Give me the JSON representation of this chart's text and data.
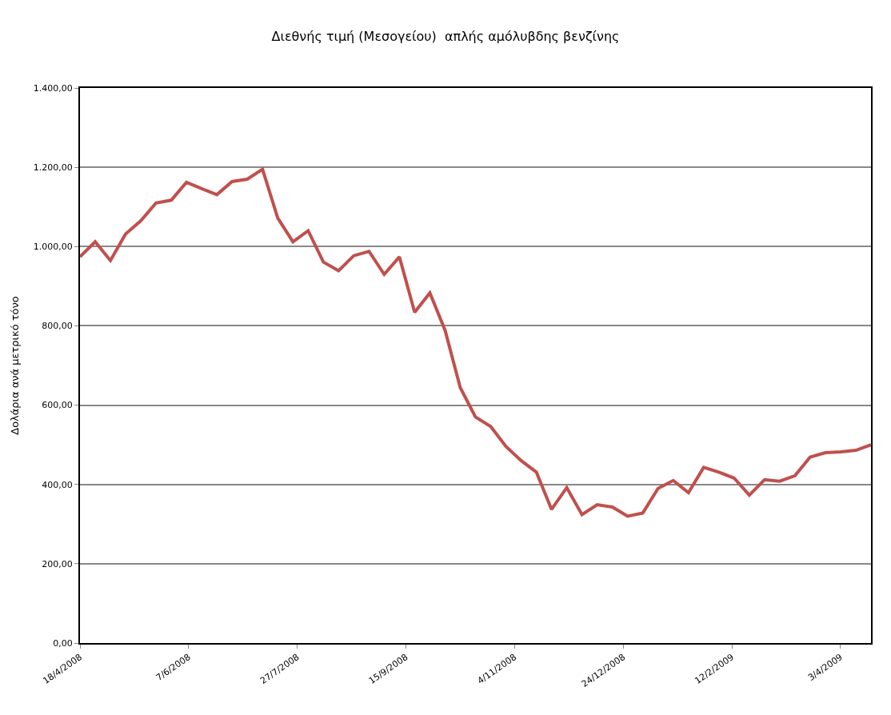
{
  "chart_data": {
    "type": "line",
    "title": "Διεθνής τιμή (Μεσογείου)  απλής αμόλυβδης βενζίνης",
    "ylabel": "Δολάρια ανά μετρικό τόνο",
    "x": [
      "2008-04-18",
      "2008-04-25",
      "2008-05-02",
      "2008-05-09",
      "2008-05-16",
      "2008-05-23",
      "2008-05-30",
      "2008-06-06",
      "2008-06-13",
      "2008-06-20",
      "2008-06-27",
      "2008-07-04",
      "2008-07-11",
      "2008-07-18",
      "2008-07-25",
      "2008-08-01",
      "2008-08-08",
      "2008-08-15",
      "2008-08-22",
      "2008-08-29",
      "2008-09-05",
      "2008-09-12",
      "2008-09-19",
      "2008-09-26",
      "2008-10-03",
      "2008-10-10",
      "2008-10-17",
      "2008-10-24",
      "2008-10-31",
      "2008-11-07",
      "2008-11-14",
      "2008-11-21",
      "2008-11-28",
      "2008-12-05",
      "2008-12-12",
      "2008-12-19",
      "2008-12-26",
      "2009-01-02",
      "2009-01-09",
      "2009-01-16",
      "2009-01-23",
      "2009-01-30",
      "2009-02-06",
      "2009-02-13",
      "2009-02-20",
      "2009-02-27",
      "2009-03-06",
      "2009-03-13",
      "2009-03-20",
      "2009-03-27",
      "2009-04-03",
      "2009-04-10",
      "2009-04-17"
    ],
    "series": [
      {
        "color": "#c0504d",
        "values": [
          974,
          1012,
          965,
          1032,
          1065,
          1110,
          1117,
          1162,
          1146,
          1131,
          1164,
          1170,
          1195,
          1072,
          1012,
          1040,
          961,
          939,
          977,
          988,
          930,
          974,
          834,
          883,
          789,
          644,
          570,
          546,
          496,
          460,
          431,
          337,
          392,
          324,
          349,
          343,
          320,
          328,
          390,
          410,
          379,
          443,
          431,
          416,
          373,
          412,
          408,
          422,
          469,
          480,
          482,
          486,
          500
        ]
      }
    ],
    "xlim": [
      "2008-04-18",
      "2009-04-17"
    ],
    "xticks": [
      {
        "value": "2008-04-18",
        "label": "18/4/2008"
      },
      {
        "value": "2008-06-07",
        "label": "7/6/2008"
      },
      {
        "value": "2008-07-27",
        "label": "27/7/2008"
      },
      {
        "value": "2008-09-15",
        "label": "15/9/2008"
      },
      {
        "value": "2008-11-04",
        "label": "4/11/2008"
      },
      {
        "value": "2008-12-24",
        "label": "24/12/2008"
      },
      {
        "value": "2009-02-12",
        "label": "12/2/2009"
      },
      {
        "value": "2009-04-03",
        "label": "3/4/2009"
      }
    ],
    "ylim": [
      0,
      1400
    ],
    "yticks": [
      {
        "value": 0,
        "label": "0,00"
      },
      {
        "value": 200,
        "label": "200,00"
      },
      {
        "value": 400,
        "label": "400,00"
      },
      {
        "value": 600,
        "label": "600,00"
      },
      {
        "value": 800,
        "label": "800,00"
      },
      {
        "value": 1000,
        "label": "1.000,00"
      },
      {
        "value": 1200,
        "label": "1.200,00"
      },
      {
        "value": 1400,
        "label": "1.400,00"
      }
    ],
    "grid": "y",
    "marker": "none",
    "line_style": "solid"
  }
}
